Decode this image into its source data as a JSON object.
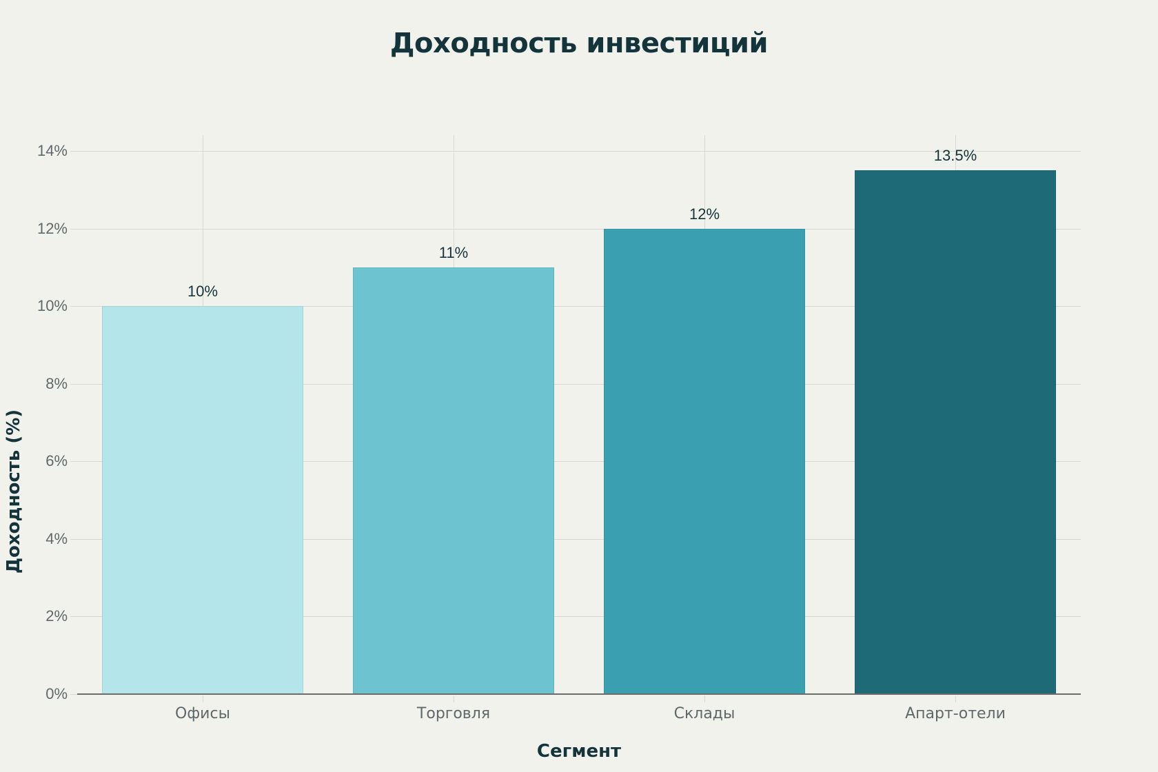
{
  "chart_data": {
    "type": "bar",
    "title": "Доходность инвестиций",
    "xlabel": "Сегмент",
    "ylabel": "Доходность (%)",
    "categories": [
      "Офисы",
      "Торговля",
      "Склады",
      "Апарт-отели"
    ],
    "values": [
      10,
      11,
      12,
      13.5
    ],
    "value_labels": [
      "10%",
      "11%",
      "12%",
      "13.5%"
    ],
    "colors": [
      "#b3e5eb",
      "#6dc4d0",
      "#3a9fb1",
      "#1f6a77"
    ],
    "ylim": [
      0,
      14
    ],
    "yticks": [
      0,
      2,
      4,
      6,
      8,
      10,
      12,
      14
    ],
    "ytick_labels": [
      "0%",
      "2%",
      "4%",
      "6%",
      "8%",
      "10%",
      "12%",
      "14%"
    ],
    "grid": true,
    "legend": null
  }
}
